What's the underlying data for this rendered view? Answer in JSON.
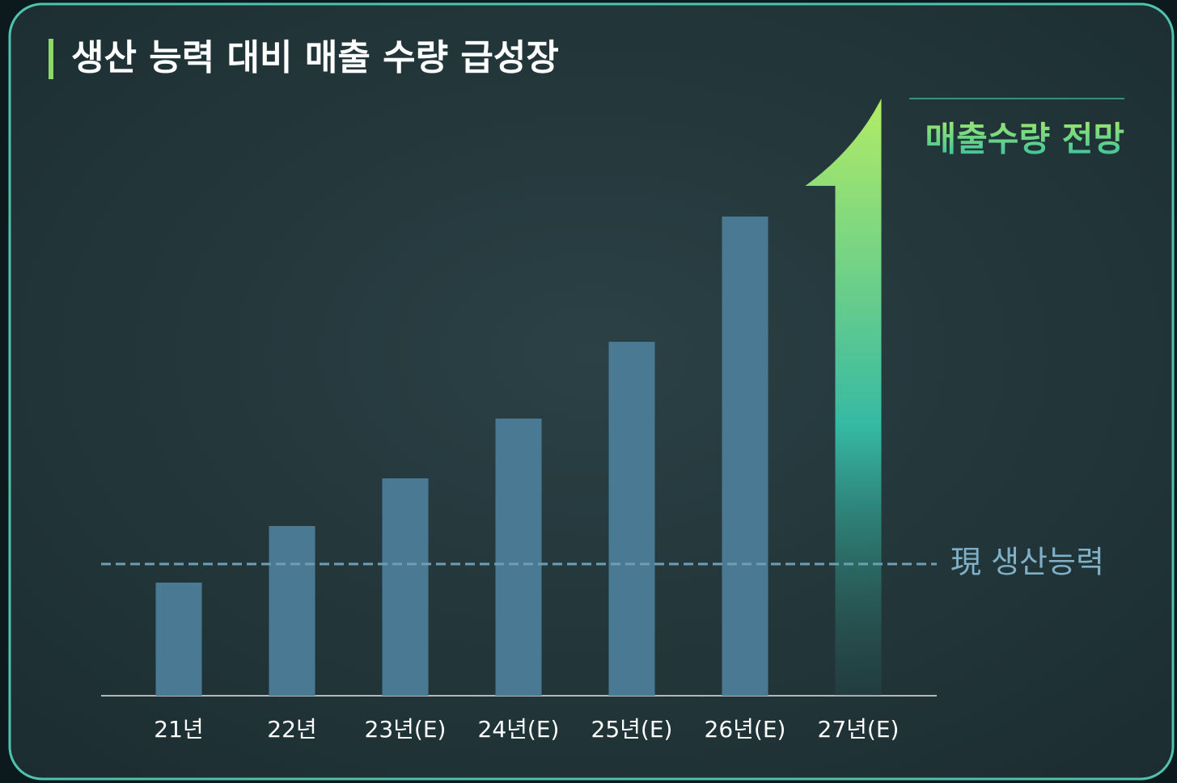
{
  "chart_data": {
    "type": "bar",
    "title": "생산 능력 대비 매출 수량 급성장",
    "categories": [
      "21년",
      "22년",
      "23년(E)",
      "24년(E)",
      "25년(E)",
      "26년(E)",
      "27년(E)"
    ],
    "values": [
      140,
      210,
      269,
      343,
      438,
      593,
      739
    ],
    "color": "#4a7a93",
    "ylim": [
      0,
      740
    ],
    "arrow": {
      "label": "매출수량 전망"
    },
    "reference_line": {
      "value": 163,
      "label": "現 생산능력"
    }
  }
}
